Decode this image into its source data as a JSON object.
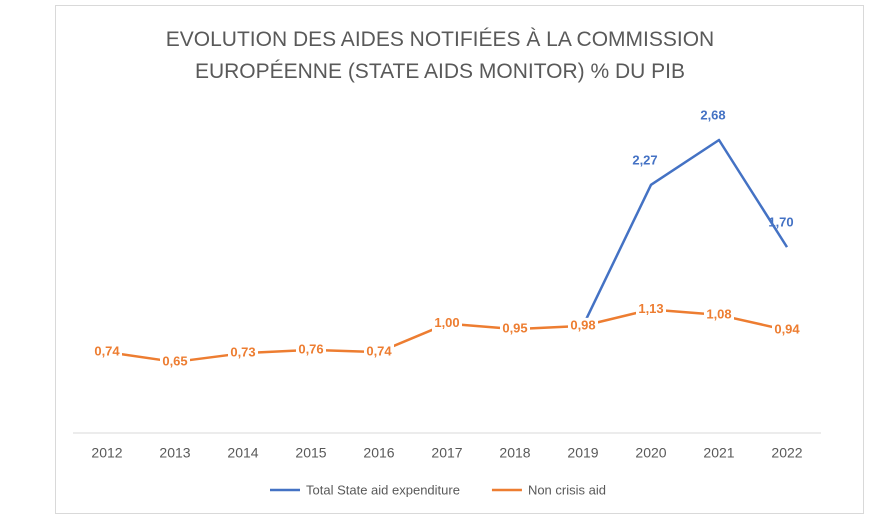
{
  "chart_data": {
    "type": "line",
    "title": "EVOLUTION DES AIDES NOTIFIÉES À LA COMMISSION EUROPÉENNE (STATE AIDS MONITOR) % DU PIB",
    "categories": [
      "2012",
      "2013",
      "2014",
      "2015",
      "2016",
      "2017",
      "2018",
      "2019",
      "2020",
      "2021",
      "2022"
    ],
    "series": [
      {
        "name": "Total State aid expenditure",
        "color": "#4472c4",
        "values": [
          null,
          null,
          null,
          null,
          null,
          null,
          null,
          0.98,
          2.27,
          2.68,
          1.7
        ],
        "value_labels": [
          null,
          null,
          null,
          null,
          null,
          null,
          null,
          null,
          "2,27",
          "2,68",
          "1,70"
        ]
      },
      {
        "name": "Non crisis aid",
        "color": "#ed7d31",
        "values": [
          0.74,
          0.65,
          0.73,
          0.76,
          0.74,
          1.0,
          0.95,
          0.98,
          1.13,
          1.08,
          0.94
        ],
        "value_labels": [
          "0,74",
          "0,65",
          "0,73",
          "0,76",
          "0,74",
          "1,00",
          "0,95",
          "0,98",
          "1,13",
          "1,08",
          "0,94"
        ]
      }
    ],
    "ylim": [
      0,
      3
    ],
    "legend": "bottom"
  }
}
